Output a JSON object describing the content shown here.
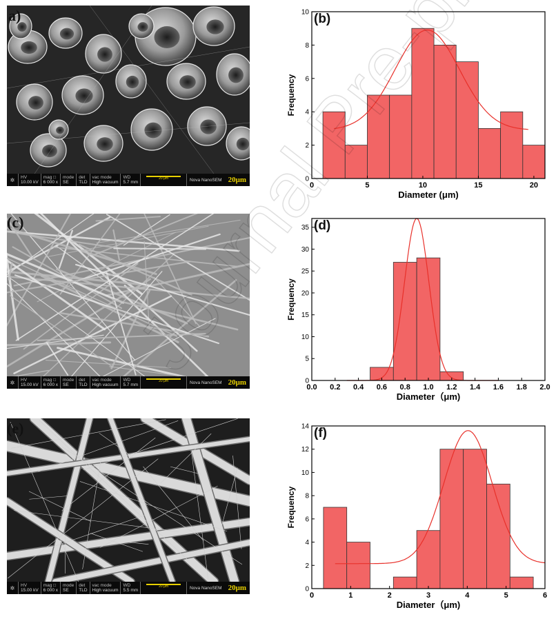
{
  "panels": [
    {
      "label": "a)",
      "hv": "10.00 kV",
      "mag": "6 000 x",
      "mode": "SE",
      "det": "TLD",
      "vac": "High vacuum",
      "wd": "5.7 mm",
      "scale": "20μm",
      "brand": "Nova NanoSEM",
      "bar_text": "20 μm"
    },
    {
      "label": "(c)",
      "hv": "15.00 kV",
      "mag": "6 000 x",
      "mode": "SE",
      "det": "TLD",
      "vac": "High vacuum",
      "wd": "5.7 mm",
      "scale": "20μm",
      "brand": "Nova NanoSEM",
      "bar_text": "20 μm"
    },
    {
      "label": "(e)",
      "hv": "15.00 kV",
      "mag": "6 000 x",
      "mode": "SE",
      "det": "TLD",
      "vac": "High vacuum",
      "wd": "5.5 mm",
      "scale": "20μm",
      "brand": "Nova NanoSEM",
      "bar_text": "20 μm"
    }
  ],
  "infobar_headers": {
    "hv": "HV",
    "mag": "mag □",
    "mode": "mode",
    "det": "det",
    "vac": "vac mode",
    "wd": "WD"
  },
  "watermark": "Journal Pre-proof",
  "colors": {
    "bar_fill": "#f26565",
    "bar_stroke": "#333333",
    "fit_line": "#e8302a",
    "axis": "#000000",
    "scale": "#e8d000"
  },
  "chart_data": [
    {
      "type": "bar",
      "label": "(b)",
      "xlabel": "Diameter   (μm)",
      "ylabel": "Frequency",
      "xlim": [
        0,
        21
      ],
      "ylim": [
        0,
        10
      ],
      "xticks": [
        0,
        5,
        10,
        15,
        20
      ],
      "yticks": [
        0,
        2,
        4,
        6,
        8,
        10
      ],
      "bin_edges": [
        1,
        3,
        5,
        7,
        9,
        11,
        13,
        15,
        17,
        19
      ],
      "bin_width": 2,
      "values": [
        4,
        2,
        5,
        5,
        9,
        8,
        7,
        3,
        4,
        2
      ],
      "fit": {
        "mu": 10.4,
        "sigma": 2.9,
        "amp": 6.0,
        "base": 2.9,
        "x_from": 2,
        "x_to": 19.5
      }
    },
    {
      "type": "bar",
      "label": "(d)",
      "xlabel": "Diameter（μm)",
      "ylabel": "Frequency",
      "xlim": [
        0,
        2
      ],
      "ylim": [
        0,
        37
      ],
      "xticks": [
        "0.0",
        "0.2",
        "0.4",
        "0.6",
        "0.8",
        "1.0",
        "1.2",
        "1.4",
        "1.6",
        "1.8",
        "2.0"
      ],
      "yticks": [
        0,
        5,
        10,
        15,
        20,
        25,
        30,
        35
      ],
      "bin_edges": [
        0.5,
        0.7,
        0.9,
        1.1
      ],
      "bin_width": 0.2,
      "values": [
        3,
        27,
        28,
        2
      ],
      "fit": {
        "mu": 0.9,
        "sigma": 0.105,
        "amp": 37,
        "base": 0,
        "x_from": 0.3,
        "x_to": 1.6
      }
    },
    {
      "type": "bar",
      "label": "(f)",
      "xlabel": "Diameter（μm)",
      "ylabel": "Frequency",
      "xlim": [
        0,
        6
      ],
      "ylim": [
        0,
        14
      ],
      "xticks": [
        0,
        1,
        2,
        3,
        4,
        5,
        6
      ],
      "yticks": [
        0,
        2,
        4,
        6,
        8,
        10,
        12,
        14
      ],
      "bin_edges": [
        0.3,
        0.9,
        2.1,
        2.7,
        3.3,
        3.9,
        4.5,
        5.1
      ],
      "bin_width": 0.6,
      "values": [
        7,
        4,
        1,
        5,
        12,
        12,
        9,
        1
      ],
      "fit": {
        "mu": 4.02,
        "sigma": 0.62,
        "amp": 11.45,
        "base": 2.15,
        "x_from": 0.6,
        "x_to": 6
      }
    }
  ]
}
